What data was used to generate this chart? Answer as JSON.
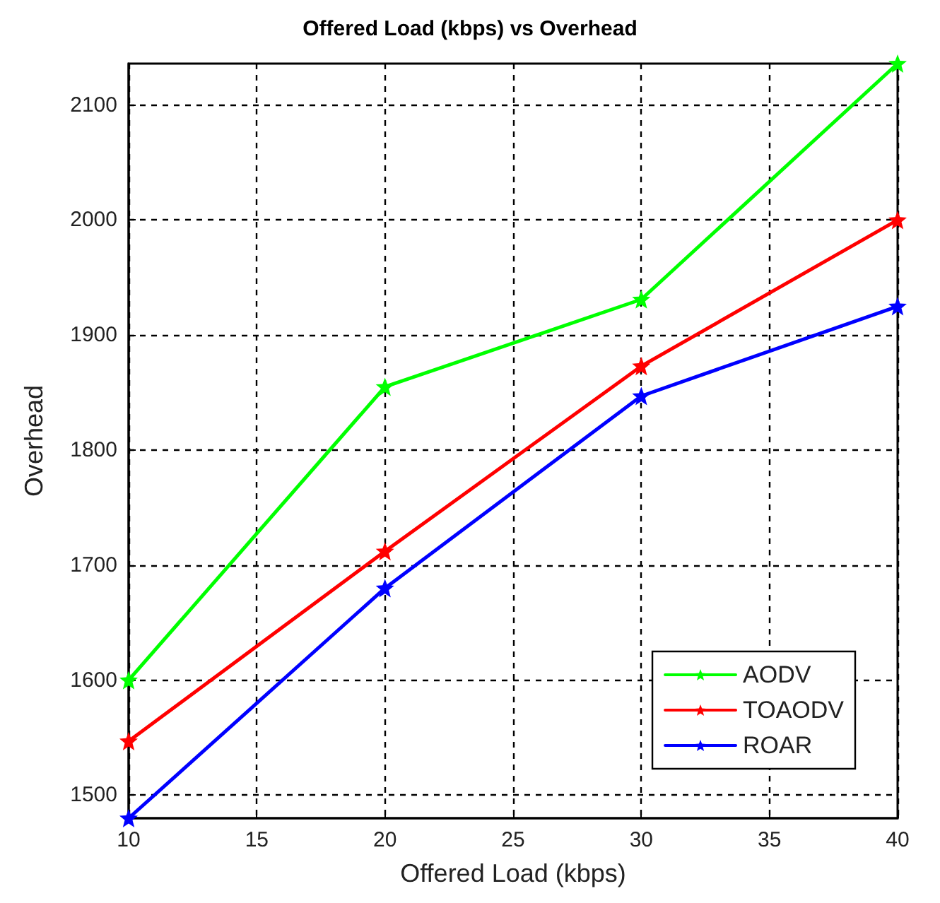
{
  "chart_data": {
    "type": "line",
    "title": "Offered Load (kbps) vs Overhead",
    "xlabel": "Offered Load (kbps)",
    "ylabel": "Overhead",
    "x": [
      10,
      20,
      30,
      40
    ],
    "series": [
      {
        "name": "AODV",
        "color": "#00ff00",
        "values": [
          1600,
          1855,
          1931,
          2136
        ]
      },
      {
        "name": "TOAODV",
        "color": "#ff0000",
        "values": [
          1547,
          1712,
          1873,
          2000
        ]
      },
      {
        "name": "ROAR",
        "color": "#0000ff",
        "values": [
          1480,
          1680,
          1847,
          1925
        ]
      }
    ],
    "xlim": [
      10,
      40
    ],
    "xticks": [
      10,
      15,
      20,
      25,
      30,
      35,
      40
    ],
    "ylim": [
      1480,
      2136
    ],
    "yticks": [
      1500,
      1600,
      1700,
      1800,
      1900,
      2000,
      2100
    ],
    "grid": true,
    "legend": "bottom right",
    "marker": "star",
    "line_style": "solid"
  }
}
